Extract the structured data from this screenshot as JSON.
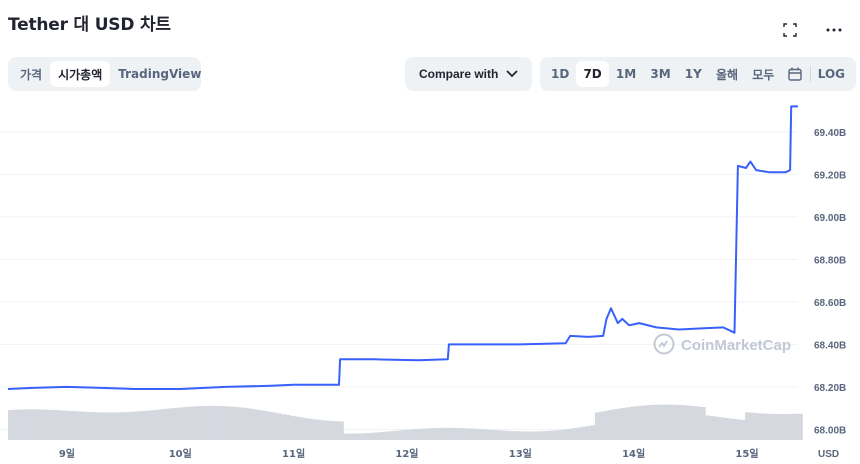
{
  "header": {
    "title": "Tether 대 USD 차트"
  },
  "icons": {
    "fullscreen": "fullscreen-icon",
    "more": "more-icon",
    "calendar": "calendar-icon",
    "chevron": "chevron-down-icon"
  },
  "tabs": {
    "price": "가격",
    "market_cap": "시가총액",
    "tradingview": "TradingView",
    "active": "market_cap"
  },
  "compare": {
    "label": "Compare with"
  },
  "ranges": {
    "d1": "1D",
    "d7": "7D",
    "m1": "1M",
    "m3": "3M",
    "y1": "1Y",
    "ytd": "올해",
    "all": "모두",
    "log": "LOG",
    "active": "7D"
  },
  "watermark": "CoinMarketCap",
  "colors": {
    "line": "#3861fb",
    "volume": "#d5d8df",
    "grid": "#eff2f5",
    "axis_text": "#58667e"
  },
  "chart_data": {
    "type": "line",
    "title": "Tether 대 USD 차트",
    "y_unit_label": "USD",
    "ylim": [
      67.95,
      69.55
    ],
    "yticks": [
      "69.40B",
      "69.20B",
      "69.00B",
      "68.80B",
      "68.60B",
      "68.40B",
      "68.20B",
      "68.00B"
    ],
    "ytick_values": [
      69.4,
      69.2,
      69.0,
      68.8,
      68.6,
      68.4,
      68.2,
      68.0
    ],
    "xlim": [
      8.48,
      15.45
    ],
    "xticks": [
      "9일",
      "10일",
      "11일",
      "12일",
      "13일",
      "14일",
      "15일"
    ],
    "xtick_values": [
      9,
      10,
      11,
      12,
      13,
      14,
      15
    ],
    "grid": true,
    "series": [
      {
        "unit": "B",
        "points": [
          [
            8.48,
            68.19
          ],
          [
            8.7,
            68.195
          ],
          [
            9.0,
            68.2
          ],
          [
            9.3,
            68.195
          ],
          [
            9.6,
            68.19
          ],
          [
            10.0,
            68.19
          ],
          [
            10.4,
            68.2
          ],
          [
            10.8,
            68.205
          ],
          [
            11.0,
            68.21
          ],
          [
            11.4,
            68.21
          ],
          [
            11.41,
            68.33
          ],
          [
            11.7,
            68.33
          ],
          [
            12.1,
            68.325
          ],
          [
            12.36,
            68.33
          ],
          [
            12.37,
            68.4
          ],
          [
            12.8,
            68.4
          ],
          [
            13.0,
            68.4
          ],
          [
            13.4,
            68.405
          ],
          [
            13.44,
            68.44
          ],
          [
            13.6,
            68.435
          ],
          [
            13.73,
            68.44
          ],
          [
            13.76,
            68.52
          ],
          [
            13.8,
            68.57
          ],
          [
            13.86,
            68.5
          ],
          [
            13.9,
            68.52
          ],
          [
            13.96,
            68.49
          ],
          [
            14.05,
            68.5
          ],
          [
            14.2,
            68.48
          ],
          [
            14.4,
            68.47
          ],
          [
            14.6,
            68.475
          ],
          [
            14.79,
            68.48
          ],
          [
            14.89,
            68.455
          ],
          [
            14.92,
            69.24
          ],
          [
            14.99,
            69.23
          ],
          [
            15.03,
            69.26
          ],
          [
            15.08,
            69.22
          ],
          [
            15.2,
            69.21
          ],
          [
            15.34,
            69.21
          ],
          [
            15.38,
            69.22
          ],
          [
            15.39,
            69.52
          ],
          [
            15.45,
            69.52
          ]
        ]
      }
    ]
  }
}
